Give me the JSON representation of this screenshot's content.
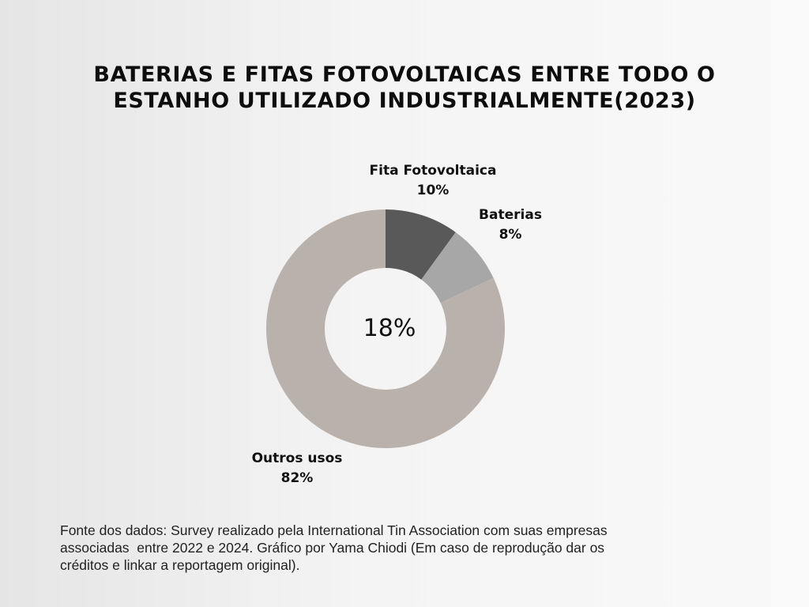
{
  "title": {
    "line1": "BATERIAS E FITAS FOTOVOLTAICAS ENTRE TODO O",
    "line2": "ESTANHO UTILIZADO INDUSTRIALMENTE(2023)"
  },
  "center_label": "18%",
  "source": {
    "line1": "Fonte dos dados: Survey realizado pela International Tin Association com suas empresas",
    "line2": "associadas  entre 2022 e 2024. Gráfico por Yama Chiodi (Em caso de reprodução dar os",
    "line3": "créditos e linkar a reportagem original)."
  },
  "chart_data": {
    "type": "pie",
    "variant": "donut",
    "title": "BATERIAS E FITAS FOTOVOLTAICAS ENTRE TODO O ESTANHO UTILIZADO INDUSTRIALMENTE(2023)",
    "center_text": "18%",
    "slices": [
      {
        "label": "Fita Fotovoltaica",
        "value": 10,
        "value_label": "10%",
        "color": "#595959"
      },
      {
        "label": "Baterias",
        "value": 8,
        "value_label": "8%",
        "color": "#a7a7a7"
      },
      {
        "label": "Outros usos",
        "value": 82,
        "value_label": "82%",
        "color": "#b9b1ac"
      }
    ],
    "legend": "none",
    "labels": "outside"
  }
}
